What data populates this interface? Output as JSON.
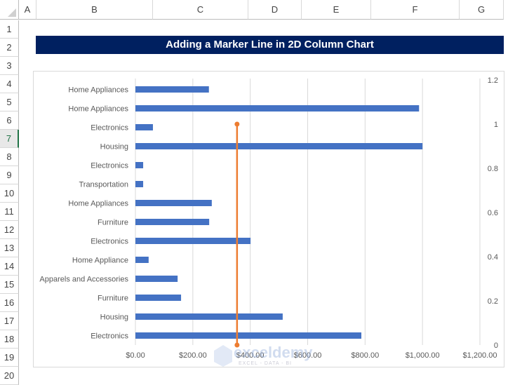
{
  "sheet": {
    "columns": [
      "A",
      "B",
      "C",
      "D",
      "E",
      "F",
      "G"
    ],
    "rows": [
      "1",
      "2",
      "3",
      "4",
      "5",
      "6",
      "7",
      "8",
      "9",
      "10",
      "11",
      "12",
      "13",
      "14",
      "15",
      "16",
      "17",
      "18",
      "19",
      "20"
    ],
    "selected_row": "7"
  },
  "title": "Adding a Marker Line in 2D Column Chart",
  "chart_data": {
    "type": "bar",
    "orientation": "horizontal",
    "categories": [
      "Home Appliances",
      "Home Appliances",
      "Electronics",
      "Housing",
      "Electronics",
      "Transportation",
      "Home Appliances",
      "Furniture",
      "Electronics",
      "Home Appliance",
      "Apparels and Accessories",
      "Furniture",
      "Housing",
      "Electronics"
    ],
    "values": [
      256,
      988,
      61,
      1000,
      27,
      27,
      266,
      257,
      401,
      46,
      147,
      159,
      513,
      787
    ],
    "xlim": [
      0,
      1200
    ],
    "xticks": [
      "$0.00",
      "$200.00",
      "$400.00",
      "$600.00",
      "$800.00",
      "$1,000.00",
      "$1,200.00"
    ],
    "secondary_ylim": [
      0,
      1.2
    ],
    "secondary_yticks": [
      "0",
      "0.2",
      "0.4",
      "0.6",
      "0.8",
      "1",
      "1.2"
    ],
    "marker_line": {
      "x": 354,
      "y": [
        0,
        1
      ]
    },
    "bar_color": "#4472C4",
    "marker_color": "#ED7D31",
    "grid": true
  },
  "watermark": {
    "brand": "exceldemy",
    "tagline": "EXCEL - DATA - BI"
  }
}
